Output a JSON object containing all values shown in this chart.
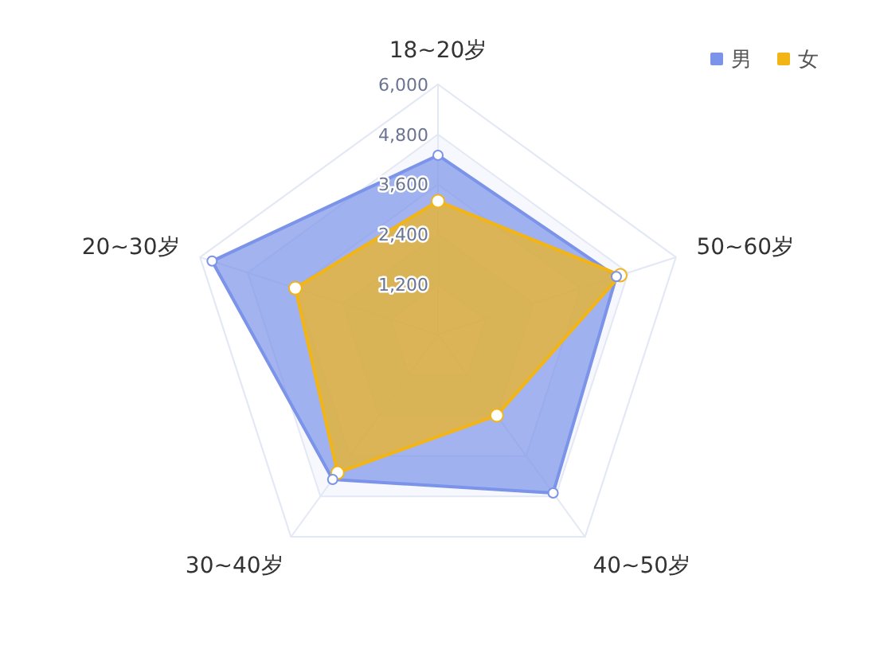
{
  "chart_data": {
    "type": "radar",
    "categories": [
      "18~20岁",
      "50~60岁",
      "40~50岁",
      "30~40岁",
      "20~30岁"
    ],
    "series": [
      {
        "name": "男",
        "color": "#7b93e8",
        "values": [
          4300,
          4500,
          4700,
          4300,
          5700
        ]
      },
      {
        "name": "女",
        "color": "#f2b515",
        "values": [
          3200,
          4600,
          2400,
          4100,
          3600
        ]
      }
    ],
    "ylim": [
      0,
      6000
    ],
    "yticks": [
      {
        "value": 1200,
        "label": "1,200"
      },
      {
        "value": 2400,
        "label": "2,400"
      },
      {
        "value": 3600,
        "label": "3,600"
      },
      {
        "value": 4800,
        "label": "4,800"
      },
      {
        "value": 6000,
        "label": "6,000"
      }
    ],
    "grid": true,
    "legend": "top right",
    "marker": "circle"
  }
}
